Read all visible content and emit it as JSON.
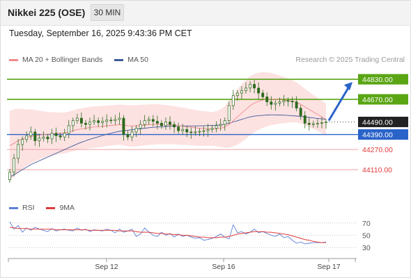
{
  "header": {
    "title": "Nikkei 225 (OSE)",
    "timeframe": "30 MIN",
    "datetime": "Tuesday, September 16, 2025 9:43:36 PM CET"
  },
  "legend": {
    "ma20": "MA 20 + Bollinger Bands",
    "ma50": "MA 50",
    "copyright": "Research © 2025 Trading Central",
    "rsi": "RSI",
    "ma9": "9MA"
  },
  "colors": {
    "ma20": "#f08a8a",
    "ma50": "#3b5a9a",
    "bollinger_fill": "#fde2e2",
    "green": "#5aa514",
    "blue": "#2a63c9",
    "red": "#e03a3a",
    "dark": "#222222",
    "rsi": "#5b7fd6",
    "rsi_ma": "#e03a3a"
  },
  "chart_data": [
    {
      "type": "candlestick",
      "x_labels": [
        "Sep 12",
        "Sep 16",
        "Sep 17"
      ],
      "price_range": [
        43900,
        44930
      ],
      "levels": [
        {
          "value": 44830,
          "label": "44830.00",
          "style": "green-line"
        },
        {
          "value": 44670,
          "label": "44670.00",
          "style": "green-line"
        },
        {
          "value": 44490,
          "label": "44490.00",
          "style": "current"
        },
        {
          "value": 44390,
          "label": "44390.00",
          "style": "blue-line"
        },
        {
          "value": 44270,
          "label": "44270.00",
          "style": "red-line"
        },
        {
          "value": 44110,
          "label": "44110.00",
          "style": "red-line"
        }
      ],
      "candles_close": [
        44090,
        44200,
        44310,
        44350,
        44380,
        44410,
        44340,
        44360,
        44370,
        44355,
        44400,
        44380,
        44370,
        44400,
        44460,
        44500,
        44520,
        44480,
        44470,
        44490,
        44500,
        44485,
        44495,
        44505,
        44500,
        44510,
        44520,
        44390,
        44370,
        44410,
        44440,
        44470,
        44500,
        44510,
        44495,
        44480,
        44460,
        44490,
        44470,
        44450,
        44420,
        44430,
        44410,
        44405,
        44410,
        44415,
        44420,
        44430,
        44440,
        44460,
        44470,
        44500,
        44620,
        44700,
        44720,
        44740,
        44760,
        44790,
        44760,
        44720,
        44690,
        44650,
        44630,
        44640,
        44650,
        44660,
        44655,
        44650,
        44600,
        44540,
        44480,
        44470,
        44475,
        44480,
        44485,
        44490
      ],
      "ma20": [
        44300,
        44320,
        44340,
        44355,
        44365,
        44375,
        44380,
        44385,
        44390,
        44392,
        44395,
        44398,
        44400,
        44402,
        44410,
        44420,
        44430,
        44435,
        44440,
        44445,
        44450,
        44452,
        44455,
        44460,
        44462,
        44465,
        44468,
        44465,
        44460,
        44458,
        44460,
        44462,
        44465,
        44468,
        44470,
        44472,
        44470,
        44468,
        44466,
        44464,
        44460,
        44456,
        44452,
        44448,
        44444,
        44440,
        44438,
        44436,
        44434,
        44436,
        44440,
        44450,
        44470,
        44500,
        44530,
        44560,
        44590,
        44620,
        44640,
        44655,
        44665,
        44670,
        44672,
        44670,
        44668,
        44665,
        44660,
        44655,
        44645,
        44630,
        44610,
        44590,
        44570,
        44550,
        44530,
        44510
      ],
      "ma50": [
        44050,
        44070,
        44090,
        44110,
        44130,
        44150,
        44165,
        44180,
        44195,
        44210,
        44225,
        44240,
        44255,
        44270,
        44285,
        44300,
        44315,
        44328,
        44340,
        44352,
        44362,
        44372,
        44382,
        44392,
        44400,
        44408,
        44415,
        44420,
        44424,
        44428,
        44432,
        44436,
        44440,
        44444,
        44447,
        44450,
        44452,
        44454,
        44456,
        44457,
        44458,
        44458,
        44458,
        44458,
        44458,
        44459,
        44460,
        44461,
        44462,
        44464,
        44467,
        44472,
        44480,
        44490,
        44500,
        44510,
        44520,
        44530,
        44536,
        44540,
        44543,
        44545,
        44546,
        44546,
        44545,
        44544,
        44542,
        44540,
        44537,
        44534,
        44530,
        44526,
        44522,
        44518,
        44514,
        44510
      ],
      "band_half_width": [
        280,
        270,
        255,
        240,
        225,
        215,
        205,
        195,
        185,
        178,
        172,
        168,
        165,
        163,
        162,
        162,
        163,
        164,
        165,
        165,
        165,
        164,
        163,
        162,
        161,
        160,
        160,
        162,
        164,
        165,
        165,
        164,
        163,
        162,
        161,
        160,
        158,
        156,
        154,
        152,
        150,
        148,
        146,
        144,
        142,
        140,
        138,
        136,
        134,
        140,
        150,
        165,
        185,
        205,
        220,
        230,
        235,
        235,
        232,
        228,
        222,
        215,
        208,
        200,
        192,
        184,
        176,
        168,
        160,
        152,
        145,
        140,
        136,
        132,
        130,
        128
      ],
      "projection": {
        "from": 44490,
        "to": 44830
      }
    },
    {
      "type": "line",
      "title": "RSI",
      "ylim": [
        20,
        80
      ],
      "ticks": [
        70,
        50,
        30
      ],
      "series": [
        {
          "name": "RSI",
          "values": [
            72,
            60,
            66,
            55,
            62,
            58,
            63,
            60,
            58,
            56,
            61,
            57,
            59,
            60,
            58,
            57,
            62,
            58,
            60,
            56,
            59,
            58,
            57,
            60,
            58,
            54,
            60,
            55,
            57,
            60,
            48,
            52,
            62,
            55,
            50,
            48,
            55,
            50,
            53,
            47,
            52,
            48,
            50,
            47,
            45,
            46,
            42,
            43,
            45,
            48,
            52,
            47,
            44,
            67,
            54,
            56,
            52,
            55,
            60,
            54,
            56,
            53,
            50,
            48,
            52,
            46,
            48,
            42,
            37,
            39,
            36,
            37,
            38,
            38,
            38,
            39
          ]
        },
        {
          "name": "9MA",
          "values": [
            63,
            62,
            61,
            61,
            61,
            60,
            60,
            60,
            60,
            60,
            60,
            59,
            59,
            59,
            59,
            59,
            59,
            59,
            59,
            58,
            58,
            58,
            58,
            58,
            58,
            58,
            57,
            57,
            57,
            57,
            56,
            55,
            55,
            55,
            54,
            53,
            53,
            52,
            52,
            51,
            51,
            50,
            50,
            49,
            48,
            47,
            47,
            46,
            46,
            46,
            47,
            47,
            48,
            50,
            52,
            53,
            54,
            55,
            56,
            56,
            56,
            55,
            55,
            54,
            53,
            52,
            51,
            49,
            47,
            45,
            43,
            42,
            40,
            39,
            38,
            38
          ]
        }
      ]
    }
  ]
}
